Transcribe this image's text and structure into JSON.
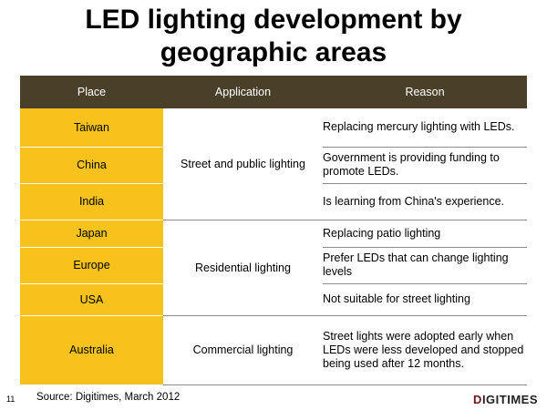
{
  "title": {
    "line1": "LED lighting development by",
    "line2": "geographic areas"
  },
  "table": {
    "headers": {
      "place": "Place",
      "application": "Application",
      "reason": "Reason"
    },
    "groups": [
      {
        "application": "Street and public lighting",
        "rows": [
          {
            "place": "Taiwan",
            "reason": "Replacing mercury lighting with LEDs."
          },
          {
            "place": "China",
            "reason": "Government is providing funding to promote LEDs."
          },
          {
            "place": "India",
            "reason": "Is learning from China's experience."
          }
        ]
      },
      {
        "application": "Residential lighting",
        "rows": [
          {
            "place": "Japan",
            "reason": "Replacing patio lighting"
          },
          {
            "place": "Europe",
            "reason": "Prefer LEDs that can change lighting levels"
          },
          {
            "place": "USA",
            "reason": "Not suitable for street lighting"
          }
        ]
      },
      {
        "application": "Commercial lighting",
        "rows": [
          {
            "place": "Australia",
            "reason": "Street lights were adopted early when LEDs were less developed and stopped being used after 12 months."
          }
        ]
      }
    ]
  },
  "footer": {
    "slide_number": "11",
    "source": "Source: Digitimes, March 2012",
    "logo_mark": "D",
    "logo_text": "IGITIMES"
  },
  "colors": {
    "header_bg": "#4a402a",
    "place_bg": "#f7c21b"
  }
}
